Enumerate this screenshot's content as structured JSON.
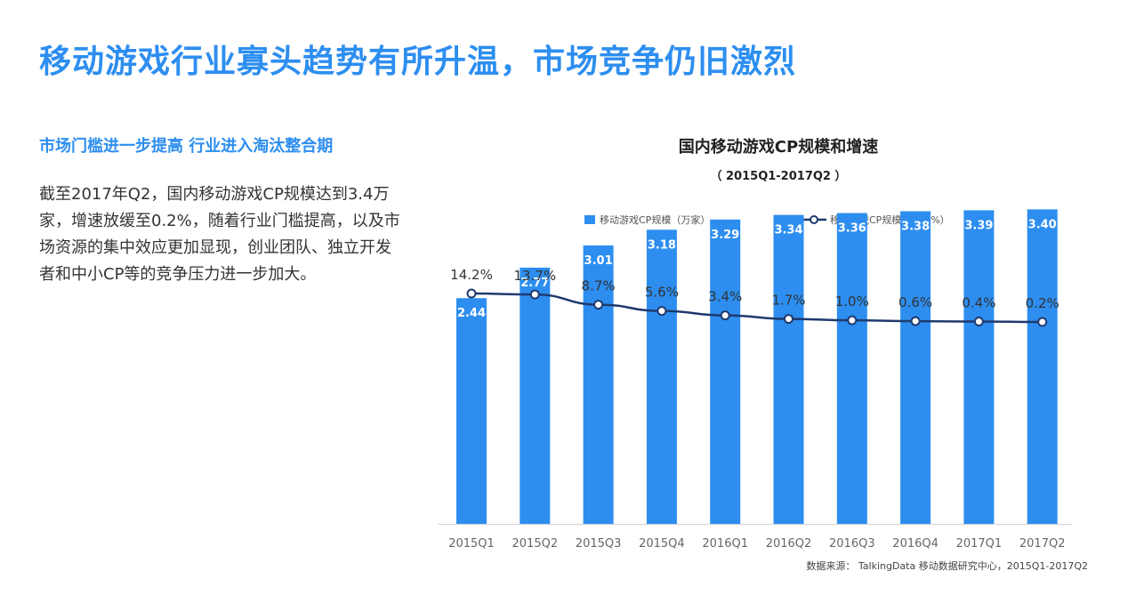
{
  "page": {
    "title": "移动游戏行业寡头趋势有所升温，市场竞争仍旧激烈",
    "subhead": "市场门槛进一步提高 行业进入淘汰整合期",
    "body": "截至2017年Q2，国内移动游戏CP规模达到3.4万家，增速放缓至0.2%，随着行业门槛提高，以及市场资源的集中效应更加显现，创业团队、独立开发者和中小CP等的竞争压力进一步加大。"
  },
  "chart_data": {
    "type": "bar",
    "title": "国内移动游戏CP规模和增速",
    "subtitle": "（ 2015Q1-2017Q2 ）",
    "categories": [
      "2015Q1",
      "2015Q2",
      "2015Q3",
      "2015Q4",
      "2016Q1",
      "2016Q2",
      "2016Q3",
      "2016Q4",
      "2017Q1",
      "2017Q2"
    ],
    "series": [
      {
        "name": "移动游戏CP规模（万家）",
        "type": "bar",
        "values": [
          2.44,
          2.77,
          3.01,
          3.18,
          3.29,
          3.34,
          3.36,
          3.38,
          3.39,
          3.4
        ],
        "labels": [
          "2.44",
          "2.77",
          "3.01",
          "3.18",
          "3.29",
          "3.34",
          "3.36",
          "3.38",
          "3.39",
          "3.40"
        ],
        "color": "#2d8ef0"
      },
      {
        "name": "移动游戏CP规模增速（%）",
        "type": "line",
        "values": [
          14.2,
          13.7,
          8.7,
          5.6,
          3.4,
          1.7,
          1.0,
          0.6,
          0.4,
          0.2
        ],
        "labels": [
          "14.2%",
          "13.7%",
          "8.7%",
          "5.6%",
          "3.4%",
          "1.7%",
          "1.0%",
          "0.6%",
          "0.4%",
          "0.2%"
        ],
        "color": "#1f3a6e"
      }
    ],
    "legend_position": "top",
    "grid": false,
    "source": "数据来源： TalkingData 移动数据研究中心，2015Q1-2017Q2"
  }
}
